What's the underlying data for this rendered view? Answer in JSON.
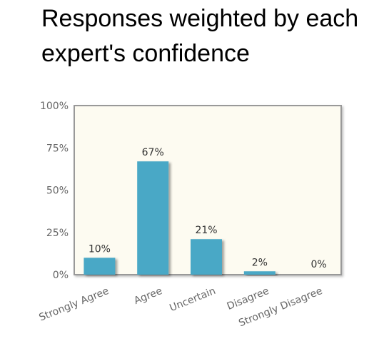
{
  "header": {
    "title": "Responses weighted by each expert's confidence"
  },
  "colors": {
    "bar": "#4aa8c6",
    "plot_background": "#fdfbf1",
    "frame": "#999999"
  },
  "chart_data": {
    "type": "bar",
    "title": "Responses weighted by each expert's confidence",
    "categories": [
      "Strongly Agree",
      "Agree",
      "Uncertain",
      "Disagree",
      "Strongly Disagree"
    ],
    "values": [
      10,
      67,
      21,
      2,
      0
    ],
    "data_labels": [
      "10%",
      "67%",
      "21%",
      "2%",
      "0%"
    ],
    "y_ticks": [
      "0%",
      "25%",
      "50%",
      "75%",
      "100%"
    ],
    "ylim": [
      0,
      100
    ],
    "xlabel": "",
    "ylabel": "",
    "grid": false,
    "legend": "none"
  }
}
